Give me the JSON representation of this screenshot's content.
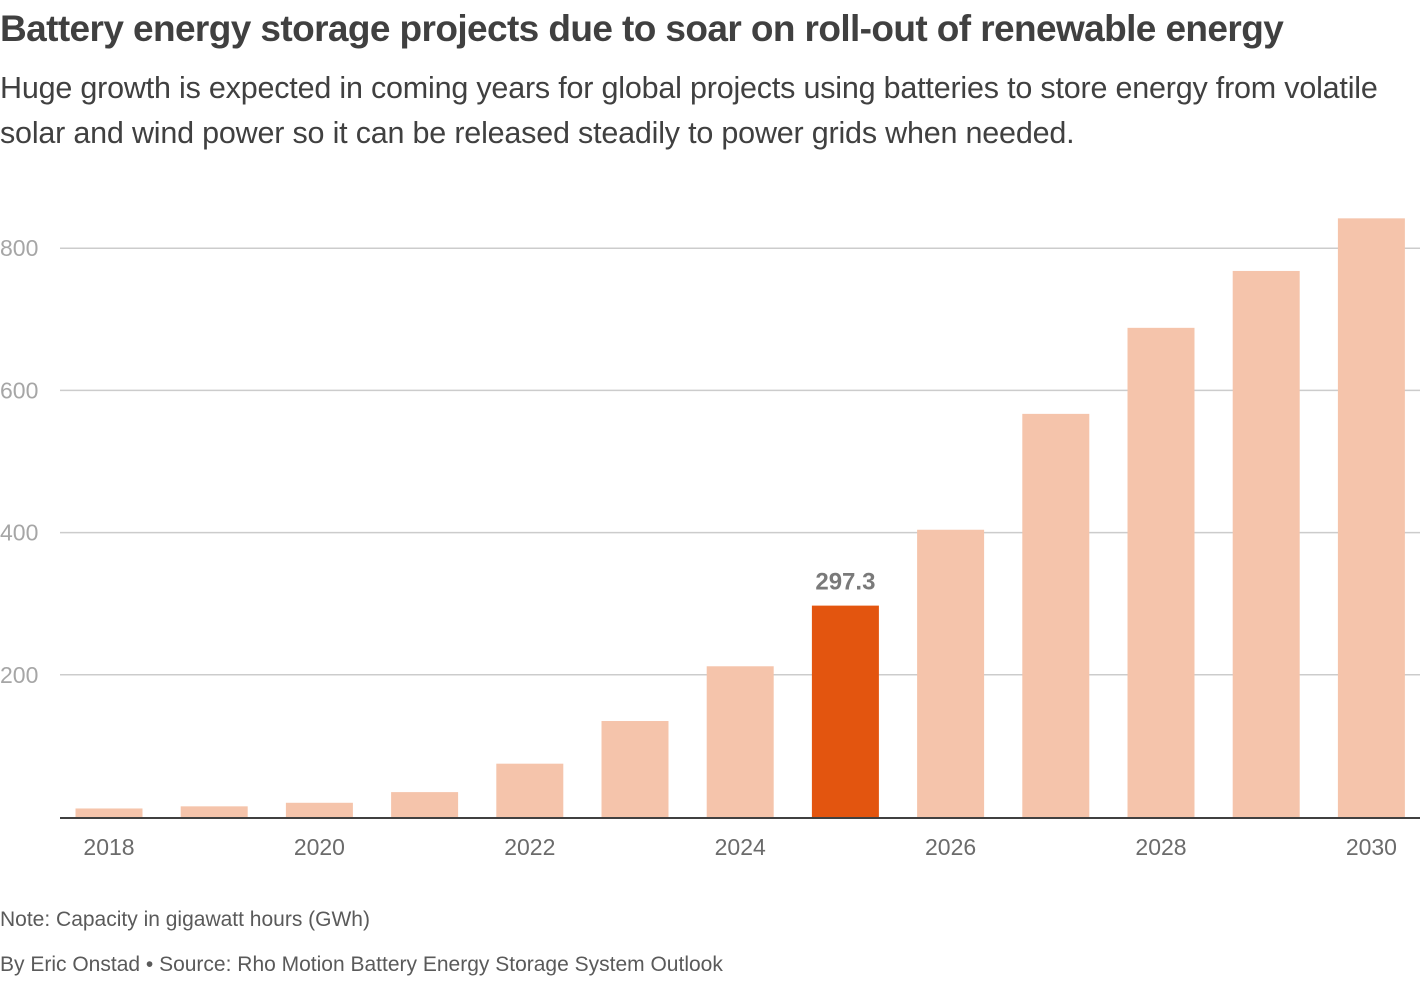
{
  "header": {
    "title": "Battery energy storage projects due to soar on roll-out of renewable energy",
    "subtitle": "Huge growth is expected in coming years for global projects using batteries to store energy from volatile solar and wind power so it can be released steadily to power grids when needed."
  },
  "footer": {
    "note": "Note: Capacity in gigawatt hours (GWh)",
    "source": "By Eric Onstad • Source: Rho Motion Battery Energy Storage System Outlook"
  },
  "colors": {
    "bar": "#f5c4ab",
    "highlight": "#e3550f",
    "grid": "#cccccc",
    "axis": "#404040",
    "tick_label": "#a6a6a6",
    "x_label": "#6b6b6b",
    "data_label": "#7a7a7a"
  },
  "chart_data": {
    "type": "bar",
    "title": "Battery energy storage projects due to soar on roll-out of renewable energy",
    "xlabel": "",
    "ylabel": "",
    "unit": "GWh",
    "categories": [
      "2018",
      "2019",
      "2020",
      "2021",
      "2022",
      "2023",
      "2024",
      "2025",
      "2026",
      "2027",
      "2028",
      "2029",
      "2030"
    ],
    "values": [
      12,
      15,
      20,
      35,
      75,
      135,
      212,
      297.3,
      404,
      567,
      688,
      768,
      842
    ],
    "highlight_index": 7,
    "data_labels": [
      {
        "index": 7,
        "text": "297.3"
      }
    ],
    "x_tick_labels": [
      "2018",
      "2020",
      "2022",
      "2024",
      "2026",
      "2028",
      "2030"
    ],
    "y_ticks": [
      200,
      400,
      600,
      800
    ],
    "y_tick_labels": [
      "200",
      "400",
      "600",
      "800"
    ],
    "ylim": [
      0,
      850
    ],
    "grid": true,
    "legend": "none"
  }
}
